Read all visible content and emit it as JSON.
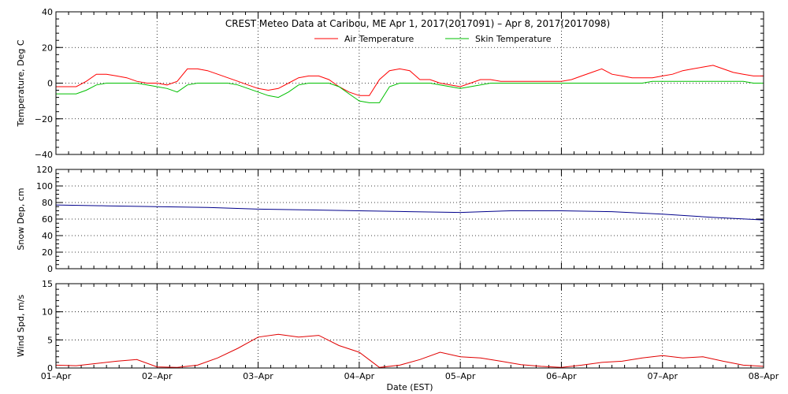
{
  "chart_data": [
    {
      "type": "line",
      "title": "CREST Meteo Data at Caribou, ME   Apr  1, 2017(2017091) – Apr  8, 2017(2017098)",
      "xlabel": "",
      "ylabel": "Temperature, Deg C",
      "ylim": [
        -40,
        40
      ],
      "yticks": [
        "40",
        "20",
        "0",
        "−20",
        "−40"
      ],
      "x": [
        0,
        0.1,
        0.2,
        0.3,
        0.4,
        0.5,
        0.6,
        0.7,
        0.8,
        0.9,
        1.0,
        1.1,
        1.2,
        1.3,
        1.4,
        1.5,
        1.6,
        1.7,
        1.8,
        1.9,
        2.0,
        2.1,
        2.2,
        2.3,
        2.4,
        2.5,
        2.6,
        2.7,
        2.8,
        2.9,
        3.0,
        3.1,
        3.2,
        3.3,
        3.4,
        3.5,
        3.6,
        3.7,
        3.8,
        3.9,
        4.0,
        4.1,
        4.2,
        4.3,
        4.4,
        4.5,
        4.6,
        4.7,
        4.8,
        4.9,
        5.0,
        5.1,
        5.2,
        5.3,
        5.4,
        5.5,
        5.6,
        5.7,
        5.8,
        5.9,
        6.0,
        6.1,
        6.2,
        6.3,
        6.4,
        6.5,
        6.6,
        6.7,
        6.8,
        6.9,
        7.0
      ],
      "legend_position": "top-center",
      "series": [
        {
          "name": "Air Temperature",
          "color": "#ff0000",
          "values": [
            -2,
            -2,
            -2,
            1,
            5,
            5,
            4,
            3,
            1,
            0,
            0,
            -1,
            1,
            8,
            8,
            7,
            5,
            3,
            1,
            -1,
            -3,
            -4,
            -3,
            0,
            3,
            4,
            4,
            2,
            -2,
            -5,
            -7,
            -7,
            2,
            7,
            8,
            7,
            2,
            2,
            0,
            -1,
            -2,
            0,
            2,
            2,
            1,
            1,
            1,
            1,
            1,
            1,
            1,
            2,
            4,
            6,
            8,
            5,
            4,
            3,
            3,
            3,
            4,
            5,
            7,
            8,
            9,
            10,
            8,
            6,
            5,
            4,
            4
          ]
        },
        {
          "name": "Skin Temperature",
          "color": "#00c000",
          "values": [
            -6,
            -6,
            -6,
            -4,
            -1,
            0,
            0,
            0,
            0,
            -1,
            -2,
            -3,
            -5,
            -1,
            0,
            0,
            0,
            0,
            -1,
            -3,
            -5,
            -7,
            -8,
            -5,
            -1,
            0,
            0,
            0,
            -2,
            -6,
            -10,
            -11,
            -11,
            -2,
            0,
            0,
            0,
            0,
            -1,
            -2,
            -3,
            -2,
            -1,
            0,
            0,
            0,
            0,
            0,
            0,
            0,
            0,
            0,
            0,
            0,
            0,
            0,
            0,
            0,
            0,
            1,
            1,
            1,
            1,
            1,
            1,
            1,
            1,
            1,
            1,
            0,
            0
          ]
        }
      ]
    },
    {
      "type": "line",
      "title": "",
      "xlabel": "",
      "ylabel": "Snow Dep, cm",
      "ylim": [
        0,
        120
      ],
      "yticks": [
        "120",
        "100",
        "80",
        "60",
        "40",
        "20",
        "0"
      ],
      "x": [
        0,
        0.5,
        1.0,
        1.5,
        2.0,
        2.5,
        3.0,
        3.5,
        4.0,
        4.5,
        5.0,
        5.5,
        6.0,
        6.5,
        7.0
      ],
      "series": [
        {
          "color": "#00008b",
          "values": [
            77,
            76,
            75,
            74,
            72,
            71,
            70,
            69,
            68,
            70,
            70,
            69,
            66,
            62,
            59
          ]
        }
      ]
    },
    {
      "type": "line",
      "title": "",
      "xlabel": "Date (EST)",
      "ylabel": "Wind Spd, m/s",
      "ylim": [
        0,
        15
      ],
      "yticks": [
        "15",
        "10",
        "5",
        "0"
      ],
      "x": [
        0,
        0.2,
        0.4,
        0.6,
        0.8,
        1.0,
        1.2,
        1.4,
        1.6,
        1.8,
        2.0,
        2.2,
        2.4,
        2.6,
        2.8,
        3.0,
        3.2,
        3.4,
        3.6,
        3.8,
        4.0,
        4.2,
        4.4,
        4.6,
        4.8,
        5.0,
        5.2,
        5.4,
        5.6,
        5.8,
        6.0,
        6.2,
        6.4,
        6.6,
        6.8,
        7.0
      ],
      "xticks": [
        "01–Apr",
        "02–Apr",
        "03–Apr",
        "04–Apr",
        "05–Apr",
        "06–Apr",
        "07–Apr",
        "08–Apr"
      ],
      "series": [
        {
          "color": "#e00000",
          "values": [
            0.5,
            0.4,
            0.8,
            1.2,
            1.5,
            0.2,
            0.1,
            0.5,
            1.8,
            3.5,
            5.5,
            6.0,
            5.5,
            5.8,
            4.0,
            2.8,
            0.1,
            0.5,
            1.5,
            2.8,
            2.0,
            1.8,
            1.2,
            0.6,
            0.3,
            0.1,
            0.5,
            1.0,
            1.2,
            1.8,
            2.2,
            1.8,
            2.0,
            1.2,
            0.5,
            0.3
          ]
        }
      ]
    }
  ]
}
